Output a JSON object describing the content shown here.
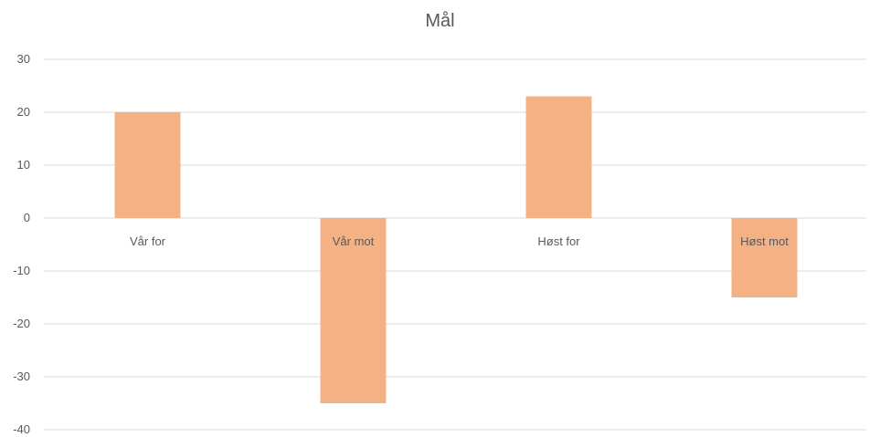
{
  "chart_data": {
    "type": "bar",
    "title": "Mål",
    "categories": [
      "Vår for",
      "Vår mot",
      "Høst for",
      "Høst mot"
    ],
    "values": [
      20,
      -35,
      23,
      -15
    ],
    "ylim": [
      -40,
      30
    ],
    "yticks": [
      30,
      20,
      10,
      0,
      -10,
      -20,
      -30,
      -40
    ],
    "grid": true,
    "legend": "none",
    "bar_color": "#f4b183"
  }
}
